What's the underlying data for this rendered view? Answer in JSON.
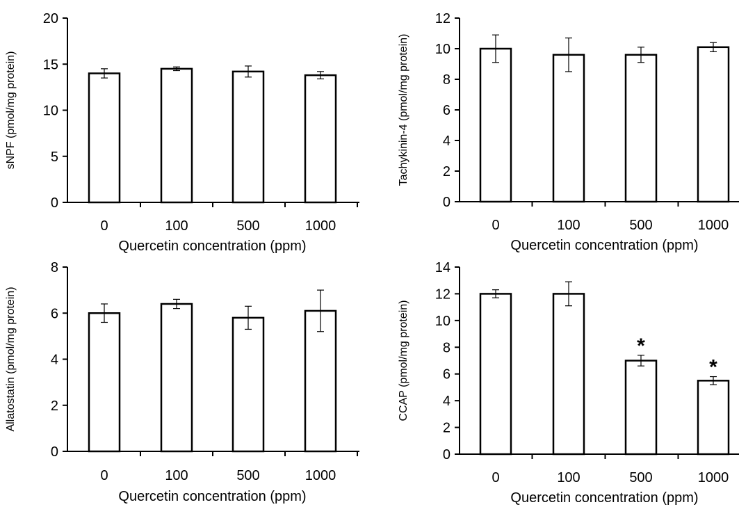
{
  "chart_data": [
    {
      "type": "bar",
      "categories": [
        "0",
        "100",
        "500",
        "1000"
      ],
      "values": [
        14.0,
        14.5,
        14.2,
        13.8
      ],
      "errors": [
        0.5,
        0.2,
        0.6,
        0.4
      ],
      "significance": [
        "",
        "",
        "",
        ""
      ],
      "xlabel": "Quercetin concentration (ppm)",
      "ylabel": "sNPF (pmol/mg protein)",
      "ylim": [
        0,
        20
      ],
      "yticks": [
        "0",
        "5",
        "10",
        "15",
        "20"
      ],
      "bar_color": "#ffffff",
      "edge_color": "#000000"
    },
    {
      "type": "bar",
      "categories": [
        "0",
        "100",
        "500",
        "1000"
      ],
      "values": [
        10.0,
        9.6,
        9.6,
        10.1
      ],
      "errors": [
        0.9,
        1.1,
        0.5,
        0.3
      ],
      "significance": [
        "",
        "",
        "",
        ""
      ],
      "xlabel": "Quercetin concentration (ppm)",
      "ylabel": "Tachykinin-4 (pmol/mg protein)",
      "ylim": [
        0,
        12
      ],
      "yticks": [
        "0",
        "2",
        "4",
        "6",
        "8",
        "10",
        "12"
      ],
      "bar_color": "#ffffff",
      "edge_color": "#000000"
    },
    {
      "type": "bar",
      "categories": [
        "0",
        "100",
        "500",
        "1000"
      ],
      "values": [
        6.0,
        6.4,
        5.8,
        6.1
      ],
      "errors": [
        0.4,
        0.2,
        0.5,
        0.9
      ],
      "significance": [
        "",
        "",
        "",
        ""
      ],
      "xlabel": "Quercetin concentration (ppm)",
      "ylabel": "Allatostatin (pmol/mg protein)",
      "ylim": [
        0,
        8
      ],
      "yticks": [
        "0",
        "2",
        "4",
        "6",
        "8"
      ],
      "bar_color": "#ffffff",
      "edge_color": "#000000"
    },
    {
      "type": "bar",
      "categories": [
        "0",
        "100",
        "500",
        "1000"
      ],
      "values": [
        12.0,
        12.0,
        7.0,
        5.5
      ],
      "errors": [
        0.3,
        0.9,
        0.4,
        0.3
      ],
      "significance": [
        "",
        "",
        "*",
        "*"
      ],
      "xlabel": "Quercetin concentration (ppm)",
      "ylabel": "CCAP (pmol/mg protein)",
      "ylim": [
        0,
        14
      ],
      "yticks": [
        "0",
        "2",
        "4",
        "6",
        "8",
        "10",
        "12",
        "14"
      ],
      "bar_color": "#ffffff",
      "edge_color": "#000000"
    }
  ]
}
